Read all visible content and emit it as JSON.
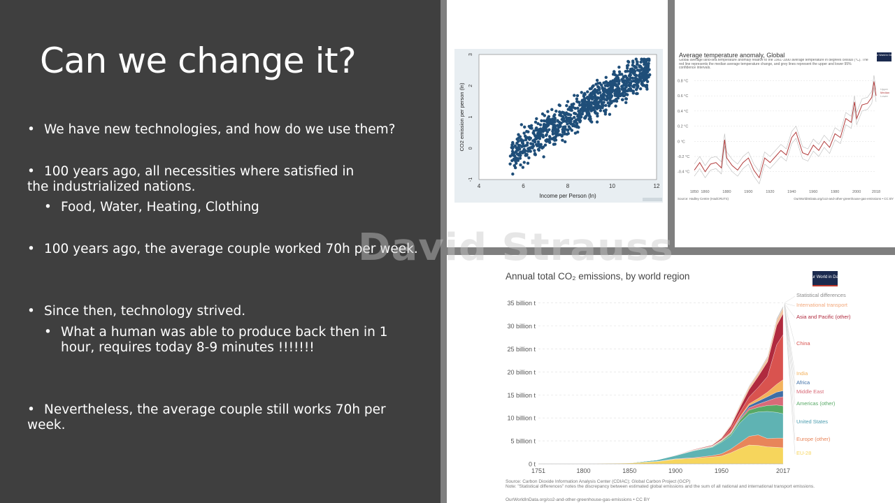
{
  "slide": {
    "title": "Can we change it?",
    "bullets": [
      {
        "text": "We have new technologies, and how do we use them?"
      },
      {
        "text": "100 years ago, all necessities where satisfied in the industrialized nations."
      },
      {
        "text": "Food, Water, Heating, Clothing"
      },
      {
        "text": "100 years ago, the average couple worked 70h per week."
      },
      {
        "text": "Since then, technology strived."
      },
      {
        "text": "What a human was able to produce back then in 1 hour, requires today 8-9 minutes !!!!!!!"
      },
      {
        "text": "Nevertheless, the average couple still works 70h per week."
      }
    ],
    "watermark": "David Strauss"
  },
  "charts": [
    {
      "chart_data": {
        "type": "scatter",
        "xlabel": "Income per Person (ln)",
        "ylabel": "CO2 emission per person (ln)",
        "xlim": [
          4,
          12
        ],
        "ylim": [
          -1,
          3
        ],
        "xticks": [
          "4",
          "6",
          "8",
          "10",
          "12"
        ],
        "yticks": [
          "-1",
          "0",
          "1",
          "2",
          "3"
        ],
        "point_color": "#1f4e79",
        "cloud": {
          "x_range": [
            5.4,
            11.7
          ],
          "trend": "positive",
          "y_at_xmin": -0.2,
          "y_at_xmax": 2.6
        }
      }
    },
    {
      "chart_data": {
        "type": "line",
        "title": "Average temperature anomaly, Global",
        "subtitle": "Global average land-sea temperature anomaly relative to the 1961-1990 average temperature in degrees celsius (°C). The red line represents the median average temperature change, and grey lines represent the upper and lower 95% confidence intervals.",
        "logo": "Our World in Data",
        "source": "Source: Hadley Centre (HadCRUT4)",
        "url": "OurWorldInData.org/co2-and-other-greenhouse-gas-emissions • CC BY",
        "xticks": [
          "1850",
          "1860",
          "1880",
          "1900",
          "1920",
          "1940",
          "1960",
          "1980",
          "2000",
          "2018"
        ],
        "yticks": [
          "0.8 °C",
          "0.6 °C",
          "0.4 °C",
          "0.2 °C",
          "0 °C",
          "-0.2 °C",
          "-0.4 °C"
        ],
        "xlim": [
          1850,
          2018
        ],
        "ylim": [
          -0.55,
          0.85
        ],
        "legend": [
          "Upper",
          "Median",
          "Lower"
        ],
        "series": [
          {
            "name": "Median",
            "color": "#b13a3a",
            "x": [
              1850,
              1855,
              1860,
              1865,
              1870,
              1875,
              1878,
              1880,
              1885,
              1890,
              1895,
              1900,
              1905,
              1910,
              1915,
              1920,
              1925,
              1930,
              1935,
              1940,
              1944,
              1950,
              1955,
              1960,
              1965,
              1970,
              1975,
              1980,
              1985,
              1990,
              1995,
              1998,
              2000,
              2005,
              2010,
              2014,
              2016,
              2018
            ],
            "values": [
              -0.38,
              -0.28,
              -0.4,
              -0.3,
              -0.28,
              -0.35,
              0.02,
              -0.22,
              -0.32,
              -0.38,
              -0.28,
              -0.22,
              -0.38,
              -0.48,
              -0.22,
              -0.28,
              -0.2,
              -0.12,
              -0.18,
              0.05,
              0.12,
              -0.15,
              -0.18,
              -0.05,
              -0.12,
              0.0,
              -0.08,
              0.1,
              0.05,
              0.3,
              0.25,
              0.52,
              0.3,
              0.48,
              0.5,
              0.58,
              0.79,
              0.6
            ]
          }
        ]
      }
    },
    {
      "chart_data": {
        "type": "area",
        "title": "Annual total CO₂ emissions, by world region",
        "logo": "Our World in Data",
        "source": "Source: Carbon Dioxide Information Analysis Center (CDIAC); Global Carbon Project (GCP)",
        "note": "Note: \"Statistical differences\" notes the discrepancy between estimated global emissions and the sum of all national and international transport emissions.",
        "url": "OurWorldInData.org/co2-and-other-greenhouse-gas-emissions • CC BY",
        "yticks": [
          "35 billion t",
          "30 billion t",
          "25 billion t",
          "20 billion t",
          "15 billion t",
          "10 billion t",
          "5 billion t",
          "0 t"
        ],
        "xticks": [
          "1751",
          "1800",
          "1850",
          "1900",
          "1950",
          "2017"
        ],
        "xlim": [
          1751,
          2017
        ],
        "ylim": [
          0,
          36
        ],
        "x": [
          1751,
          1800,
          1850,
          1880,
          1900,
          1920,
          1940,
          1950,
          1960,
          1970,
          1980,
          1990,
          2000,
          2010,
          2017
        ],
        "series": [
          {
            "name": "EU-28",
            "color": "#f6d55c",
            "values": [
              0.01,
              0.03,
              0.18,
              0.5,
              1.0,
              1.2,
              1.5,
              1.7,
              2.4,
              3.3,
              4.1,
              4.0,
              3.7,
              3.6,
              3.5
            ]
          },
          {
            "name": "Europe (other)",
            "color": "#e8855a",
            "values": [
              0,
              0.01,
              0.01,
              0.05,
              0.1,
              0.15,
              0.3,
              0.5,
              0.8,
              1.3,
              1.9,
              2.3,
              1.8,
              2.0,
              2.1
            ]
          },
          {
            "name": "United States",
            "color": "#5fb3b3",
            "values": [
              0,
              0.01,
              0.05,
              0.3,
              0.7,
              1.5,
              1.8,
              2.5,
              2.9,
              4.3,
              4.8,
              5.0,
              5.9,
              5.6,
              5.3
            ]
          },
          {
            "name": "Americas (other)",
            "color": "#57a965",
            "values": [
              0,
              0,
              0,
              0.01,
              0.03,
              0.08,
              0.12,
              0.2,
              0.35,
              0.6,
              0.9,
              1.0,
              1.3,
              1.6,
              1.7
            ]
          },
          {
            "name": "Middle East",
            "color": "#d86b78",
            "values": [
              0,
              0,
              0,
              0,
              0,
              0.01,
              0.02,
              0.05,
              0.1,
              0.25,
              0.5,
              0.7,
              1.0,
              1.6,
              2.0
            ]
          },
          {
            "name": "Africa",
            "color": "#3f6ea6",
            "values": [
              0,
              0,
              0,
              0,
              0.01,
              0.03,
              0.05,
              0.08,
              0.15,
              0.25,
              0.5,
              0.65,
              0.9,
              1.2,
              1.3
            ]
          },
          {
            "name": "India",
            "color": "#f3b25c",
            "values": [
              0,
              0,
              0,
              0.01,
              0.03,
              0.05,
              0.08,
              0.1,
              0.15,
              0.2,
              0.35,
              0.6,
              1.0,
              1.7,
              2.4
            ]
          },
          {
            "name": "China",
            "color": "#d9534f",
            "values": [
              0,
              0,
              0,
              0,
              0.01,
              0.02,
              0.05,
              0.08,
              0.8,
              1.0,
              1.5,
              2.4,
              3.4,
              8.6,
              9.8
            ]
          },
          {
            "name": "Asia and Pacific (other)",
            "color": "#b02a3e",
            "values": [
              0,
              0,
              0,
              0.01,
              0.05,
              0.1,
              0.15,
              0.3,
              0.5,
              1.0,
              1.6,
              2.4,
              3.2,
              4.2,
              4.6
            ]
          },
          {
            "name": "International transport",
            "color": "#f2c29e",
            "values": [
              0,
              0,
              0,
              0,
              0,
              0.05,
              0.1,
              0.2,
              0.3,
              0.5,
              0.6,
              0.7,
              0.9,
              1.1,
              1.2
            ]
          },
          {
            "name": "Statistical differences",
            "color": "#bcbcbc",
            "values": [
              0,
              0,
              0,
              0,
              0,
              0,
              0,
              0.05,
              0.1,
              0.15,
              0.2,
              0.2,
              0.3,
              0.4,
              0.4
            ]
          }
        ],
        "labels": [
          {
            "text": "Statistical differences",
            "color": "#8a8a8a"
          },
          {
            "text": "International transport",
            "color": "#f2a77a"
          },
          {
            "text": "Asia and Pacific (other)",
            "color": "#b02a3e"
          },
          {
            "text": "China",
            "color": "#d9534f"
          },
          {
            "text": "India",
            "color": "#f3b25c"
          },
          {
            "text": "Africa",
            "color": "#3f6ea6"
          },
          {
            "text": "Middle East",
            "color": "#d86b78"
          },
          {
            "text": "Americas (other)",
            "color": "#57a965"
          },
          {
            "text": "United States",
            "color": "#4e9eb0"
          },
          {
            "text": "Europe (other)",
            "color": "#e8855a"
          },
          {
            "text": "EU-28",
            "color": "#f6d55c"
          }
        ]
      }
    }
  ]
}
